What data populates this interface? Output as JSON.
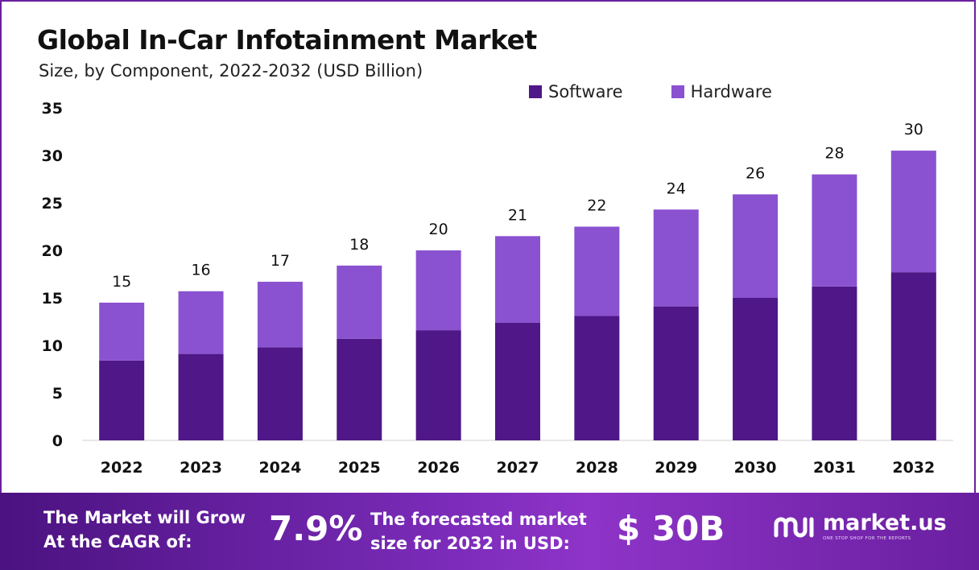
{
  "header": {
    "title": "Global In-Car Infotainment Market",
    "subtitle": "Size, by Component, 2022-2032 (USD Billion)"
  },
  "colors": {
    "software": "#4f1787",
    "hardware": "#8a52d0",
    "axis_line": "#d0d0d0",
    "border": "#6a1fa0"
  },
  "chart_data": {
    "type": "bar",
    "stacked": true,
    "categories": [
      "2022",
      "2023",
      "2024",
      "2025",
      "2026",
      "2027",
      "2028",
      "2029",
      "2030",
      "2031",
      "2032"
    ],
    "series": [
      {
        "name": "Software",
        "values": [
          8.4,
          9.1,
          9.8,
          10.7,
          11.6,
          12.4,
          13.1,
          14.1,
          15.0,
          16.2,
          17.7
        ]
      },
      {
        "name": "Hardware",
        "values": [
          6.1,
          6.6,
          6.9,
          7.7,
          8.4,
          9.1,
          9.4,
          10.2,
          10.9,
          11.8,
          12.8
        ]
      }
    ],
    "totals_labels": [
      "15",
      "16",
      "17",
      "18",
      "20",
      "21",
      "22",
      "24",
      "26",
      "28",
      "30"
    ],
    "ylim": [
      0,
      35
    ],
    "yticks": [
      "0",
      "5",
      "10",
      "15",
      "20",
      "25",
      "30",
      "35"
    ],
    "grid": false,
    "legend_position": "top-right"
  },
  "banner": {
    "cagr_line1": "The Market will Grow",
    "cagr_line2": "At the CAGR of:",
    "cagr_value": "7.9%",
    "forecast_line1": "The forecasted market",
    "forecast_line2": "size for 2032 in USD:",
    "forecast_value": "$ 30B",
    "brand_name": "market.us",
    "brand_tagline": "ONE STOP SHOP FOR THE REPORTS",
    "logo_icon": "market-us-logo-icon"
  }
}
